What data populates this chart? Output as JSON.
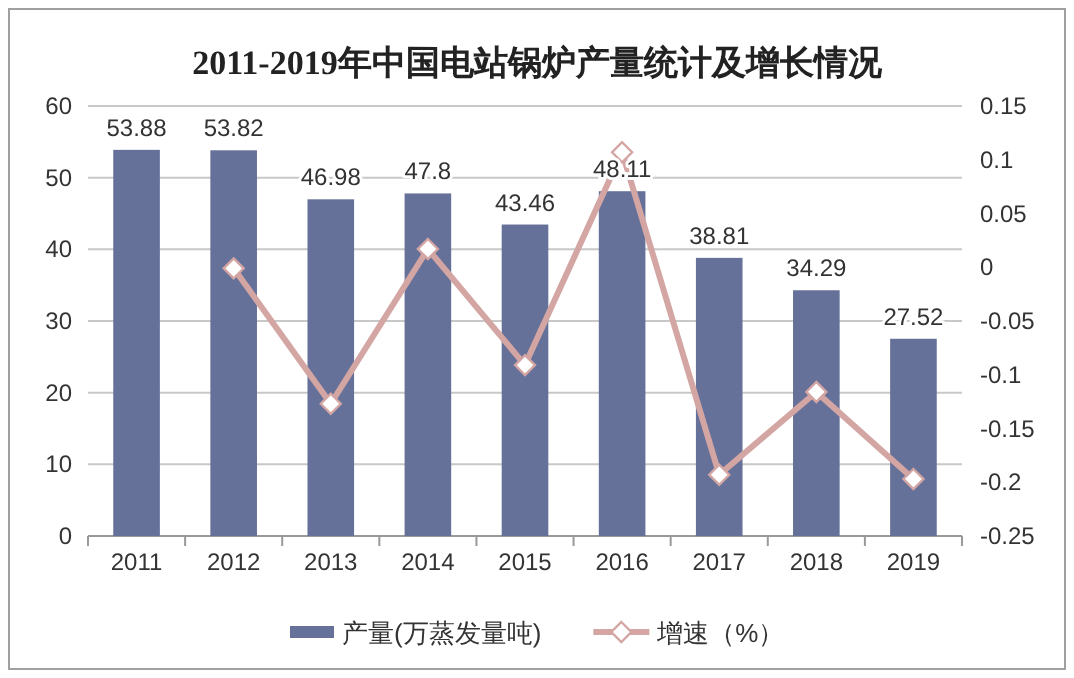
{
  "chart_data": {
    "type": "bar",
    "title": "2011-2019年中国电站锅炉产量统计及增长情况",
    "categories": [
      "2011",
      "2012",
      "2013",
      "2014",
      "2015",
      "2016",
      "2017",
      "2018",
      "2019"
    ],
    "series": [
      {
        "name": "产量(万蒸发量吨)",
        "color": "#667199",
        "values": [
          53.88,
          53.82,
          46.98,
          47.8,
          43.46,
          48.11,
          38.81,
          34.29,
          27.52
        ],
        "data_labels": true
      },
      {
        "name": "增速（%）",
        "type": "line",
        "axis": "y2",
        "color": "#d3a5a3",
        "marker": "diamond",
        "values": [
          null,
          -0.001,
          -0.127,
          0.017,
          -0.091,
          0.107,
          -0.193,
          -0.116,
          -0.197
        ]
      }
    ],
    "ylim": [
      0,
      60
    ],
    "yticks": [
      0,
      10,
      20,
      30,
      40,
      50,
      60
    ],
    "y2lim": [
      -0.25,
      0.15
    ],
    "y2ticks": [
      -0.25,
      -0.2,
      -0.15,
      -0.1,
      -0.05,
      0,
      0.05,
      0.1,
      0.15
    ],
    "grid": "y",
    "legend": "bottom"
  }
}
